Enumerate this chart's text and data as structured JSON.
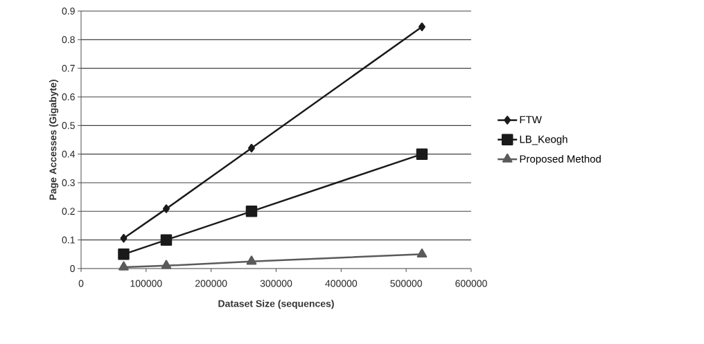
{
  "chart_data": {
    "type": "line",
    "xlabel": "Dataset Size (sequences)",
    "ylabel": "Page Accesses (Gigabyte)",
    "x": [
      65536,
      131072,
      262144,
      524288
    ],
    "series": [
      {
        "name": "FTW",
        "color": "#1a1a1a",
        "marker": "diamond",
        "values": [
          0.106,
          0.209,
          0.421,
          0.845
        ]
      },
      {
        "name": "LB_Keogh",
        "color": "#1a1a1a",
        "marker": "square",
        "values": [
          0.05,
          0.1,
          0.2,
          0.4
        ]
      },
      {
        "name": "Proposed Method",
        "color": "#5a5a5a",
        "marker": "triangle",
        "values": [
          0.005,
          0.01,
          0.025,
          0.05
        ]
      }
    ],
    "xlim": [
      0,
      600000
    ],
    "xticks": [
      0,
      100000,
      200000,
      300000,
      400000,
      500000,
      600000
    ],
    "ylim": [
      0,
      0.9
    ],
    "yticks": [
      0,
      0.1,
      0.2,
      0.3,
      0.4,
      0.5,
      0.6,
      0.7,
      0.8,
      0.9
    ],
    "grid": "y",
    "legend": "right",
    "line_style": "solid"
  }
}
